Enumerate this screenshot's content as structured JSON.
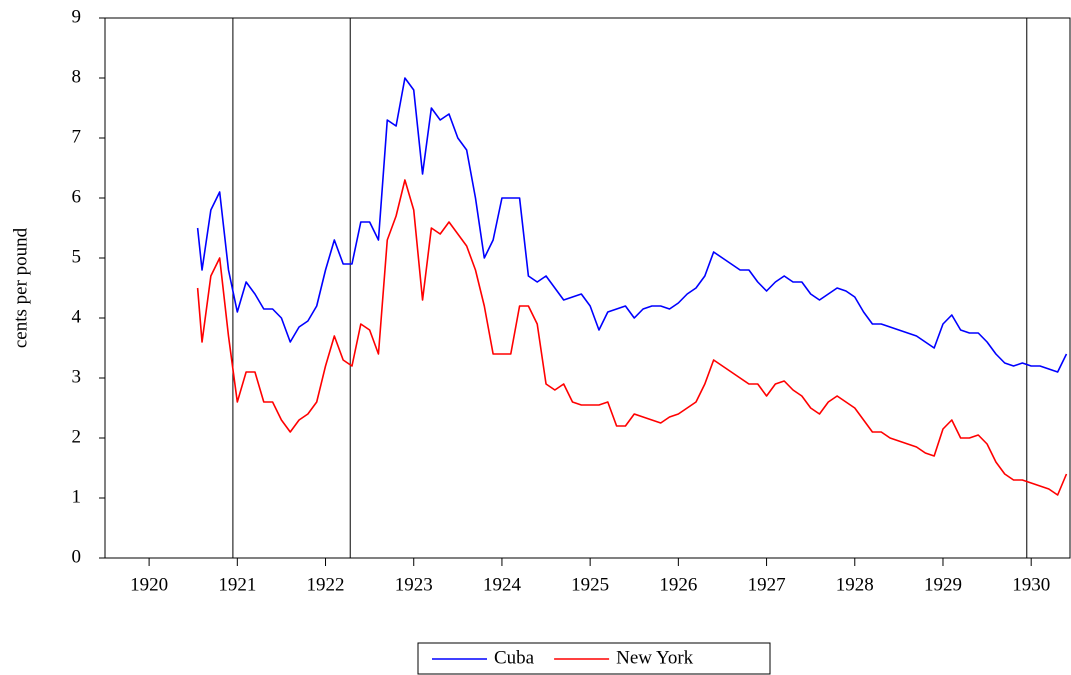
{
  "chart_data": {
    "type": "line",
    "ylabel": "cents per pound",
    "xlim": [
      1919.5,
      1930.44
    ],
    "xticks": [
      1920,
      1921,
      1922,
      1923,
      1924,
      1925,
      1926,
      1927,
      1928,
      1929,
      1930
    ],
    "ylim": [
      0,
      9
    ],
    "yticks": [
      0,
      1,
      2,
      3,
      4,
      5,
      6,
      7,
      8,
      9
    ],
    "vlines": [
      1920.95,
      1922.28,
      1929.95
    ],
    "legend": "bottom",
    "x": [
      1920.55,
      1920.6,
      1920.7,
      1920.8,
      1920.9,
      1921.0,
      1921.1,
      1921.2,
      1921.3,
      1921.4,
      1921.5,
      1921.6,
      1921.7,
      1921.8,
      1921.9,
      1922.0,
      1922.1,
      1922.2,
      1922.3,
      1922.4,
      1922.5,
      1922.6,
      1922.7,
      1922.8,
      1922.9,
      1923.0,
      1923.1,
      1923.2,
      1923.3,
      1923.4,
      1923.5,
      1923.6,
      1923.7,
      1923.8,
      1923.9,
      1924.0,
      1924.1,
      1924.2,
      1924.3,
      1924.4,
      1924.5,
      1924.6,
      1924.7,
      1924.8,
      1924.9,
      1925.0,
      1925.1,
      1925.2,
      1925.3,
      1925.4,
      1925.5,
      1925.6,
      1925.7,
      1925.8,
      1925.9,
      1926.0,
      1926.1,
      1926.2,
      1926.3,
      1926.4,
      1926.5,
      1926.6,
      1926.7,
      1926.8,
      1926.9,
      1927.0,
      1927.1,
      1927.2,
      1927.3,
      1927.4,
      1927.5,
      1927.6,
      1927.7,
      1927.8,
      1927.9,
      1928.0,
      1928.1,
      1928.2,
      1928.3,
      1928.4,
      1928.5,
      1928.6,
      1928.7,
      1928.8,
      1928.9,
      1929.0,
      1929.1,
      1929.2,
      1929.3,
      1929.4,
      1929.5,
      1929.6,
      1929.7,
      1929.8,
      1929.9,
      1930.0,
      1930.1,
      1930.2,
      1930.3,
      1930.4
    ],
    "series": [
      {
        "name": "Cuba",
        "color": "#0000ff",
        "values": [
          5.5,
          4.8,
          5.8,
          6.1,
          4.8,
          4.1,
          4.6,
          4.4,
          4.15,
          4.15,
          4.0,
          3.6,
          3.85,
          3.95,
          4.2,
          4.8,
          5.3,
          4.9,
          4.9,
          5.6,
          5.6,
          5.3,
          7.3,
          7.2,
          8.0,
          7.8,
          6.4,
          7.5,
          7.3,
          7.4,
          7.0,
          6.8,
          6.0,
          5.0,
          5.3,
          6.0,
          6.0,
          6.0,
          4.7,
          4.6,
          4.7,
          4.5,
          4.3,
          4.35,
          4.4,
          4.2,
          3.8,
          4.1,
          4.15,
          4.2,
          4.0,
          4.15,
          4.2,
          4.2,
          4.15,
          4.25,
          4.4,
          4.5,
          4.7,
          5.1,
          5.0,
          4.9,
          4.8,
          4.8,
          4.6,
          4.45,
          4.6,
          4.7,
          4.6,
          4.6,
          4.4,
          4.3,
          4.4,
          4.5,
          4.45,
          4.35,
          4.1,
          3.9,
          3.9,
          3.85,
          3.8,
          3.75,
          3.7,
          3.6,
          3.5,
          3.9,
          4.05,
          3.8,
          3.75,
          3.75,
          3.6,
          3.4,
          3.25,
          3.2,
          3.25,
          3.2,
          3.2,
          3.15,
          3.1,
          3.4
        ]
      },
      {
        "name": "New York",
        "color": "#ff0000",
        "values": [
          4.5,
          3.6,
          4.7,
          5.0,
          3.7,
          2.6,
          3.1,
          3.1,
          2.6,
          2.6,
          2.3,
          2.1,
          2.3,
          2.4,
          2.6,
          3.2,
          3.7,
          3.3,
          3.2,
          3.9,
          3.8,
          3.4,
          5.3,
          5.7,
          6.3,
          5.8,
          4.3,
          5.5,
          5.4,
          5.6,
          5.4,
          5.2,
          4.8,
          4.2,
          3.4,
          3.4,
          3.4,
          4.2,
          4.2,
          3.9,
          2.9,
          2.8,
          2.9,
          2.6,
          2.55,
          2.55,
          2.55,
          2.6,
          2.2,
          2.2,
          2.4,
          2.35,
          2.3,
          2.25,
          2.35,
          2.4,
          2.5,
          2.6,
          2.9,
          3.3,
          3.2,
          3.1,
          3.0,
          2.9,
          2.9,
          2.7,
          2.9,
          2.95,
          2.8,
          2.7,
          2.5,
          2.4,
          2.6,
          2.7,
          2.6,
          2.5,
          2.3,
          2.1,
          2.1,
          2.0,
          1.95,
          1.9,
          1.85,
          1.75,
          1.7,
          2.15,
          2.3,
          2.0,
          2.0,
          2.05,
          1.9,
          1.6,
          1.4,
          1.3,
          1.3,
          1.25,
          1.2,
          1.15,
          1.05,
          1.4
        ]
      }
    ]
  }
}
